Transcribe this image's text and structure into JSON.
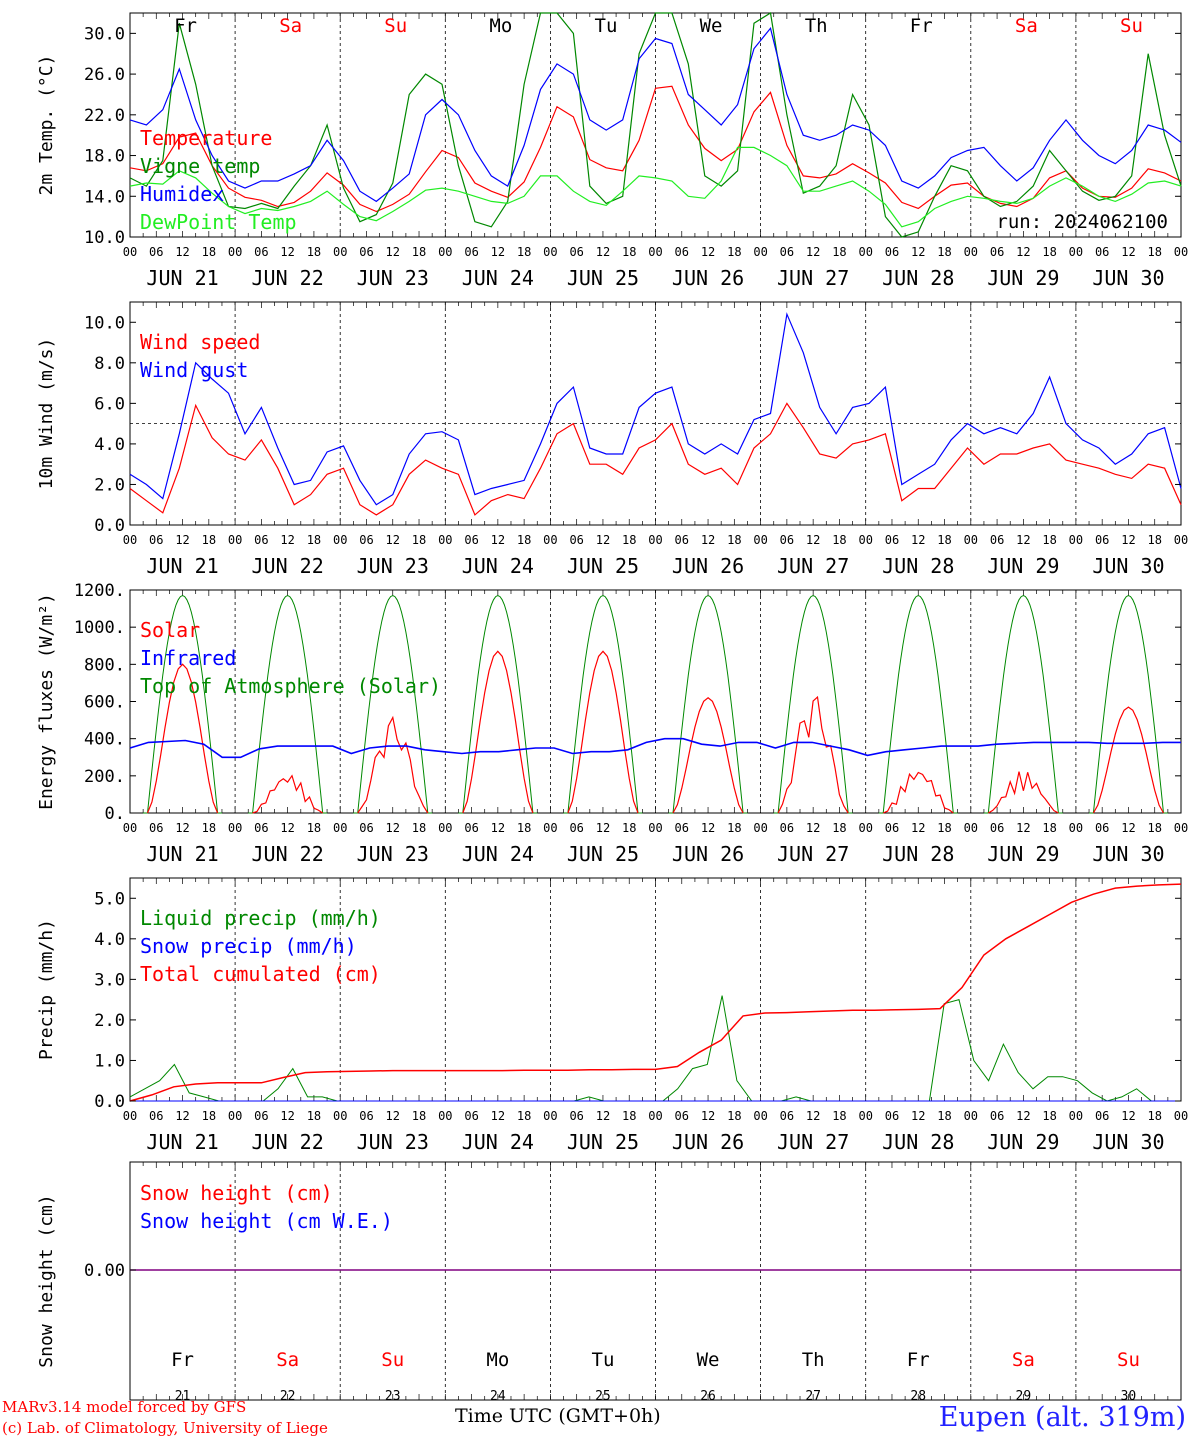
{
  "meteogram": {
    "run_label": "run: 2024062100",
    "station": "Eupen (alt. 319m)",
    "credit_line1": "MARv3.14 model forced by GFS",
    "credit_line2": "(c) Lab. of Climatology, University of Liege",
    "time_axis_label": "Time UTC (GMT+0h)",
    "time_axis_overlay": "UTC",
    "weekdays": [
      "Fr",
      "Sa",
      "Su",
      "Mo",
      "Tu",
      "We",
      "Th",
      "Fr",
      "Sa",
      "Su"
    ],
    "weekend": [
      false,
      true,
      true,
      false,
      false,
      false,
      false,
      false,
      true,
      true
    ],
    "dates": [
      "JUN 21",
      "JUN 22",
      "JUN 23",
      "JUN 24",
      "JUN 25",
      "JUN 26",
      "JUN 27",
      "JUN 28",
      "JUN 29",
      "JUN 30"
    ],
    "day_numbers": [
      "21",
      "22",
      "23",
      "24",
      "25",
      "26",
      "27",
      "28",
      "29",
      "30"
    ],
    "hour_labels": [
      "00",
      "06",
      "12",
      "18"
    ],
    "colors": {
      "red": "#ff0000",
      "blue": "#0000ff",
      "green": "#008800",
      "light_green": "#22ee22",
      "purple": "#800080",
      "weekday": "#000000",
      "weekend": "#ff0000"
    }
  },
  "chart_data": [
    {
      "type": "line",
      "title": "",
      "ylabel": "2m Temp. (°C)",
      "ylim": [
        10,
        32
      ],
      "yticks": [
        "10.0",
        "14.0",
        "18.0",
        "22.0",
        "26.0",
        "30.0"
      ],
      "step_hours": 6,
      "series": [
        {
          "name": "Temperature",
          "color": "#ff0000",
          "values": [
            16.8,
            16.5,
            17.2,
            19.8,
            20.2,
            17.0,
            14.8,
            13.9,
            13.6,
            13.0,
            13.4,
            14.5,
            16.3,
            15.1,
            13.2,
            12.5,
            13.2,
            14.2,
            16.4,
            18.5,
            17.8,
            15.3,
            14.5,
            13.9,
            15.4,
            18.8,
            22.8,
            21.8,
            17.6,
            16.8,
            16.5,
            19.5,
            24.6,
            24.8,
            21.0,
            18.7,
            17.5,
            18.6,
            22.3,
            24.2,
            19.0,
            16.0,
            15.8,
            16.2,
            17.2,
            16.3,
            15.3,
            13.4,
            12.8,
            14.0,
            15.1,
            15.3,
            14.0,
            13.3,
            13.0,
            13.8,
            15.8,
            16.5,
            14.8,
            14.0,
            13.9,
            14.8,
            16.7,
            16.3,
            15.5
          ]
        },
        {
          "name": "Vigne temp",
          "color": "#008800",
          "values": [
            15.8,
            15.0,
            17.5,
            31.0,
            25.0,
            17.0,
            13.0,
            12.8,
            13.3,
            12.8,
            15.0,
            17.0,
            21.0,
            14.8,
            11.5,
            12.2,
            15.3,
            24.0,
            26.0,
            25.0,
            17.0,
            11.5,
            11.0,
            13.5,
            25.0,
            33.0,
            33.0,
            30.0,
            15.0,
            13.3,
            14.0,
            28.0,
            33.0,
            33.0,
            27.0,
            16.0,
            15.0,
            16.5,
            31.0,
            33.0,
            22.0,
            14.3,
            15.0,
            17.0,
            24.0,
            21.0,
            12.0,
            9.0,
            10.5,
            14.0,
            17.0,
            16.5,
            14.0,
            13.0,
            13.5,
            15.0,
            18.5,
            16.5,
            14.5,
            13.6,
            14.0,
            16.0,
            28.0,
            20.0,
            15.0
          ]
        },
        {
          "name": "Humidex",
          "color": "#0000ff",
          "values": [
            21.5,
            21.0,
            22.5,
            26.5,
            21.5,
            18.0,
            15.5,
            14.8,
            15.5,
            15.5,
            16.2,
            17.0,
            19.5,
            17.5,
            14.5,
            13.5,
            14.8,
            16.2,
            22.0,
            23.5,
            22.0,
            18.5,
            16.0,
            15.0,
            19.0,
            24.5,
            27.0,
            26.0,
            21.5,
            20.5,
            21.5,
            27.5,
            29.5,
            29.0,
            24.0,
            22.5,
            21.0,
            23.0,
            28.5,
            30.5,
            24.0,
            20.0,
            19.5,
            20.0,
            21.0,
            20.5,
            19.0,
            15.5,
            14.8,
            16.0,
            17.8,
            18.5,
            18.8,
            17.0,
            15.5,
            16.8,
            19.5,
            21.5,
            19.5,
            18.0,
            17.2,
            18.5,
            21.0,
            20.5,
            19.3
          ]
        },
        {
          "name": "DewPoint Temp",
          "color": "#22ee22",
          "values": [
            15.0,
            15.3,
            15.2,
            16.5,
            15.8,
            14.3,
            13.0,
            12.3,
            12.8,
            12.6,
            13.0,
            13.5,
            14.5,
            13.2,
            12.0,
            11.6,
            12.5,
            13.5,
            14.6,
            14.8,
            14.5,
            14.0,
            13.5,
            13.3,
            14.0,
            16.0,
            16.0,
            14.5,
            13.5,
            13.1,
            14.5,
            16.0,
            15.8,
            15.5,
            14.0,
            13.8,
            15.5,
            18.8,
            18.8,
            18.0,
            17.0,
            14.5,
            14.5,
            15.0,
            15.5,
            14.5,
            13.2,
            11.0,
            11.5,
            12.8,
            13.5,
            14.0,
            13.8,
            13.5,
            13.3,
            13.8,
            15.0,
            15.8,
            15.0,
            14.0,
            13.5,
            14.2,
            15.3,
            15.5,
            15.0
          ]
        }
      ]
    },
    {
      "type": "line",
      "title": "",
      "ylabel": "10m Wind (m/s)",
      "ylim": [
        0,
        11
      ],
      "yticks": [
        "0.0",
        "2.0",
        "4.0",
        "6.0",
        "8.0",
        "10.0"
      ],
      "reference_line": 5.0,
      "step_hours": 6,
      "series": [
        {
          "name": "Wind speed",
          "color": "#ff0000",
          "values": [
            1.8,
            1.2,
            0.6,
            2.8,
            5.9,
            4.3,
            3.5,
            3.2,
            4.2,
            2.8,
            1.0,
            1.5,
            2.5,
            2.8,
            1.0,
            0.5,
            1.0,
            2.5,
            3.2,
            2.8,
            2.5,
            0.5,
            1.2,
            1.5,
            1.3,
            2.8,
            4.5,
            5.0,
            3.0,
            3.0,
            2.5,
            3.8,
            4.2,
            5.0,
            3.0,
            2.5,
            2.8,
            2.0,
            3.8,
            4.5,
            6.0,
            4.8,
            3.5,
            3.3,
            4.0,
            4.2,
            4.5,
            1.2,
            1.8,
            1.8,
            2.8,
            3.8,
            3.0,
            3.5,
            3.5,
            3.8,
            4.0,
            3.2,
            3.0,
            2.8,
            2.5,
            2.3,
            3.0,
            2.8,
            1.0
          ]
        },
        {
          "name": "Wind gust",
          "color": "#0000ff",
          "values": [
            2.5,
            2.0,
            1.3,
            4.5,
            8.0,
            7.2,
            6.5,
            4.5,
            5.8,
            3.8,
            2.0,
            2.2,
            3.6,
            3.9,
            2.2,
            1.0,
            1.5,
            3.5,
            4.5,
            4.6,
            4.2,
            1.5,
            1.8,
            2.0,
            2.2,
            4.0,
            6.0,
            6.8,
            3.8,
            3.5,
            3.5,
            5.8,
            6.5,
            6.8,
            4.0,
            3.5,
            4.0,
            3.5,
            5.2,
            5.5,
            10.4,
            8.5,
            5.8,
            4.5,
            5.8,
            6.0,
            6.8,
            2.0,
            2.5,
            3.0,
            4.2,
            5.0,
            4.5,
            4.8,
            4.5,
            5.5,
            7.3,
            5.0,
            4.2,
            3.8,
            3.0,
            3.5,
            4.5,
            4.8,
            1.8
          ]
        }
      ]
    },
    {
      "type": "line",
      "title": "",
      "ylabel": "Energy fluxes (W/m²)",
      "ylim": [
        0,
        1200
      ],
      "yticks": [
        "0.",
        "200.",
        "400.",
        "600.",
        "800.",
        "1000.",
        "1200."
      ],
      "step_hours": 6,
      "series": [
        {
          "name": "Solar",
          "color": "#ff0000",
          "peaks": [
            800,
            220,
            520,
            870,
            870,
            620,
            650,
            250,
            230,
            570
          ]
        },
        {
          "name": "Infrared",
          "color": "#0000ff",
          "values": [
            350,
            380,
            385,
            390,
            370,
            300,
            300,
            345,
            360,
            360,
            360,
            360,
            320,
            350,
            360,
            360,
            340,
            330,
            320,
            330,
            330,
            340,
            350,
            350,
            320,
            330,
            330,
            340,
            380,
            400,
            400,
            370,
            360,
            380,
            380,
            350,
            380,
            380,
            360,
            340,
            310,
            330,
            340,
            350,
            360,
            360,
            360,
            370,
            375,
            380,
            380,
            380,
            380,
            375,
            375,
            375,
            380,
            380
          ]
        },
        {
          "name": "Top of Atmosphere (Solar)",
          "color": "#008800",
          "peak": 1170
        }
      ]
    },
    {
      "type": "line",
      "title": "",
      "ylabel": "Precip (mm/h)",
      "ylim": [
        0,
        5.5
      ],
      "yticks": [
        "0.0",
        "1.0",
        "2.0",
        "3.0",
        "4.0",
        "5.0"
      ],
      "step_hours": 6,
      "series": [
        {
          "name": "Liquid precip (mm/h)",
          "color": "#008800",
          "values": [
            0.1,
            0.3,
            0.5,
            0.9,
            0.2,
            0.1,
            0.0,
            0.0,
            0.0,
            0.0,
            0.3,
            0.8,
            0.1,
            0.1,
            0.0,
            0.0,
            0.0,
            0.0,
            0.0,
            0.0,
            0.0,
            0.0,
            0.0,
            0.0,
            0.0,
            0.0,
            0.0,
            0.0,
            0.0,
            0.0,
            0.0,
            0.1,
            0.0,
            0.0,
            0.0,
            0.0,
            0.0,
            0.3,
            0.8,
            0.9,
            2.6,
            0.5,
            0.0,
            0.0,
            0.0,
            0.1,
            0.0,
            0.0,
            0.0,
            0.0,
            0.0,
            0.0,
            0.0,
            0.0,
            0.0,
            2.4,
            2.5,
            1.0,
            0.5,
            1.4,
            0.7,
            0.3,
            0.6,
            0.6,
            0.5,
            0.2,
            0.0,
            0.1,
            0.3,
            0.0,
            0.0,
            0.0
          ]
        },
        {
          "name": "Snow precip (mm/h)",
          "color": "#0000ff",
          "values": [
            0.0,
            0.0
          ]
        },
        {
          "name": "Total cumulated (cm)",
          "color": "#ff0000",
          "values": [
            0.0,
            0.15,
            0.35,
            0.42,
            0.45,
            0.45,
            0.45,
            0.58,
            0.7,
            0.72,
            0.73,
            0.74,
            0.75,
            0.75,
            0.75,
            0.75,
            0.75,
            0.75,
            0.76,
            0.76,
            0.76,
            0.77,
            0.77,
            0.78,
            0.78,
            0.85,
            1.2,
            1.5,
            2.1,
            2.17,
            2.18,
            2.2,
            2.22,
            2.24,
            2.24,
            2.25,
            2.26,
            2.28,
            2.8,
            3.6,
            4.0,
            4.3,
            4.6,
            4.9,
            5.1,
            5.25,
            5.3,
            5.33,
            5.35
          ]
        }
      ]
    },
    {
      "type": "line",
      "title": "",
      "ylabel": "Snow height (cm)",
      "yticks": [
        "0.00"
      ],
      "series": [
        {
          "name": "Snow height (cm)",
          "color": "#ff0000",
          "values": [
            0,
            0
          ]
        },
        {
          "name": "Snow height (cm W.E.)",
          "color": "#0000ff",
          "values": [
            0,
            0
          ]
        }
      ]
    }
  ]
}
